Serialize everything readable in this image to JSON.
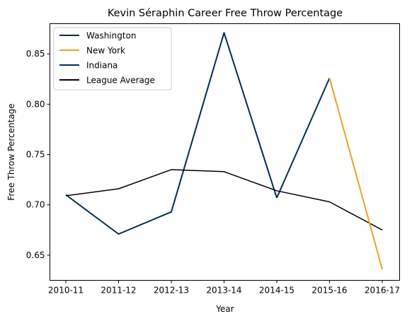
{
  "chart_data": {
    "type": "line",
    "title": "Kevin Séraphin Career Free Throw Percentage",
    "xlabel": "Year",
    "ylabel": "Free Throw Percentage",
    "categories": [
      "2010-11",
      "2011-12",
      "2012-13",
      "2013-14",
      "2014-15",
      "2015-16",
      "2016-17"
    ],
    "ylim": [
      0.625,
      0.88
    ],
    "yticks": [
      "0.65",
      "0.70",
      "0.75",
      "0.80",
      "0.85"
    ],
    "grid": false,
    "legend_position": "upper-left",
    "series": [
      {
        "name": "Washington",
        "color": "#002b5c",
        "x": [
          "2010-11",
          "2011-12",
          "2012-13",
          "2013-14",
          "2014-15"
        ],
        "values": [
          0.71,
          0.671,
          0.693,
          0.871,
          0.707
        ]
      },
      {
        "name": "New York",
        "color": "#f5a01a",
        "x": [
          "2015-16",
          "2016-17"
        ],
        "values": [
          0.826,
          0.636
        ]
      },
      {
        "name": "Indiana",
        "color": "#002d62",
        "x": [
          "2014-15",
          "2015-16"
        ],
        "values": [
          0.707,
          0.826
        ]
      },
      {
        "name": "League Average",
        "color": "#000000",
        "x": [
          "2010-11",
          "2011-12",
          "2012-13",
          "2013-14",
          "2014-15",
          "2015-16",
          "2016-17"
        ],
        "values": [
          0.709,
          0.716,
          0.735,
          0.733,
          0.714,
          0.703,
          0.675
        ]
      }
    ]
  }
}
